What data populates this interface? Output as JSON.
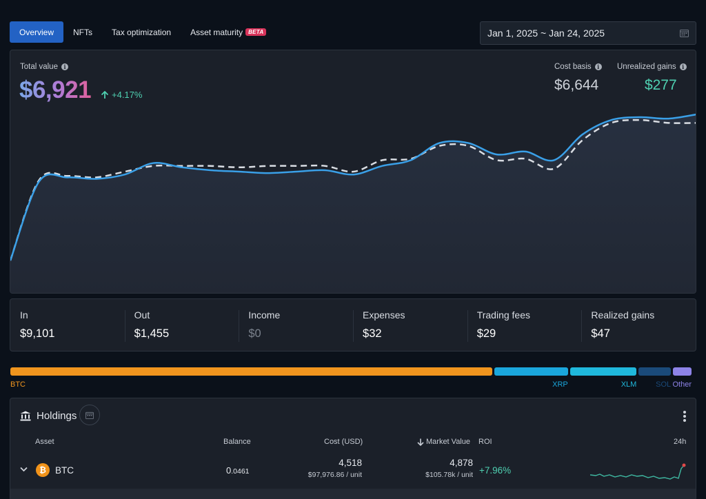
{
  "tabs": [
    {
      "label": "Overview",
      "active": true
    },
    {
      "label": "NFTs",
      "active": false
    },
    {
      "label": "Tax optimization",
      "active": false
    },
    {
      "label": "Asset maturity",
      "badge": "BETA",
      "active": false
    }
  ],
  "date_range": "Jan 1, 2025 ~ Jan 24, 2025",
  "summary": {
    "total_value_label": "Total value",
    "total_value": "$6,921",
    "change": "+4.17%",
    "cost_basis_label": "Cost basis",
    "cost_basis": "$6,644",
    "unrealized_label": "Unrealized gains",
    "unrealized": "$277"
  },
  "chart_data": {
    "type": "line",
    "series": [
      {
        "style": "solid",
        "color": "#3aa0e8",
        "values": [
          0,
          0.55,
          0.58,
          0.57,
          0.6,
          0.68,
          0.65,
          0.63,
          0.62,
          0.61,
          0.62,
          0.63,
          0.6,
          0.66,
          0.7,
          0.82,
          0.82,
          0.74,
          0.76,
          0.7,
          0.88,
          0.98,
          1.0,
          0.99,
          1.02
        ]
      },
      {
        "style": "dashed",
        "color": "#d9dde3",
        "values": [
          0,
          0.56,
          0.59,
          0.58,
          0.62,
          0.66,
          0.66,
          0.66,
          0.65,
          0.66,
          0.66,
          0.66,
          0.62,
          0.7,
          0.71,
          0.8,
          0.8,
          0.7,
          0.71,
          0.64,
          0.84,
          0.96,
          0.98,
          0.96,
          0.96
        ]
      }
    ]
  },
  "stats": [
    {
      "label": "In",
      "value": "$9,101",
      "muted": false
    },
    {
      "label": "Out",
      "value": "$1,455",
      "muted": false
    },
    {
      "label": "Income",
      "value": "$0",
      "muted": true
    },
    {
      "label": "Expenses",
      "value": "$32",
      "muted": false
    },
    {
      "label": "Trading fees",
      "value": "$29",
      "muted": false
    },
    {
      "label": "Realized gains",
      "value": "$47",
      "muted": false
    }
  ],
  "allocation": [
    {
      "label": "BTC",
      "color": "#f0951e",
      "share": 0.705
    },
    {
      "label": "XRP",
      "color": "#1aa6dc",
      "share": 0.11
    },
    {
      "label": "XLM",
      "color": "#1fb8dc",
      "share": 0.1
    },
    {
      "label": "SOL",
      "color": "#1a4a7a",
      "share": 0.05
    },
    {
      "label": "Other",
      "color": "#8d83e8",
      "share": 0.03
    }
  ],
  "holdings": {
    "title": "Holdings",
    "columns": {
      "asset": "Asset",
      "balance": "Balance",
      "cost": "Cost (USD)",
      "market_value": "Market Value",
      "roi": "ROI",
      "period": "24h"
    },
    "rows": [
      {
        "asset": "BTC",
        "balance_int": "0",
        "balance_dec": ".0461",
        "cost": "4,518",
        "cost_unit": "$97,976.86 / unit",
        "market_value": "4,878",
        "market_unit": "$105.78k / unit",
        "roi": "+7.96%"
      }
    ]
  },
  "colors": {
    "accent": "#2362c4",
    "positive": "#4fd0b1",
    "line": "#3aa0e8"
  }
}
